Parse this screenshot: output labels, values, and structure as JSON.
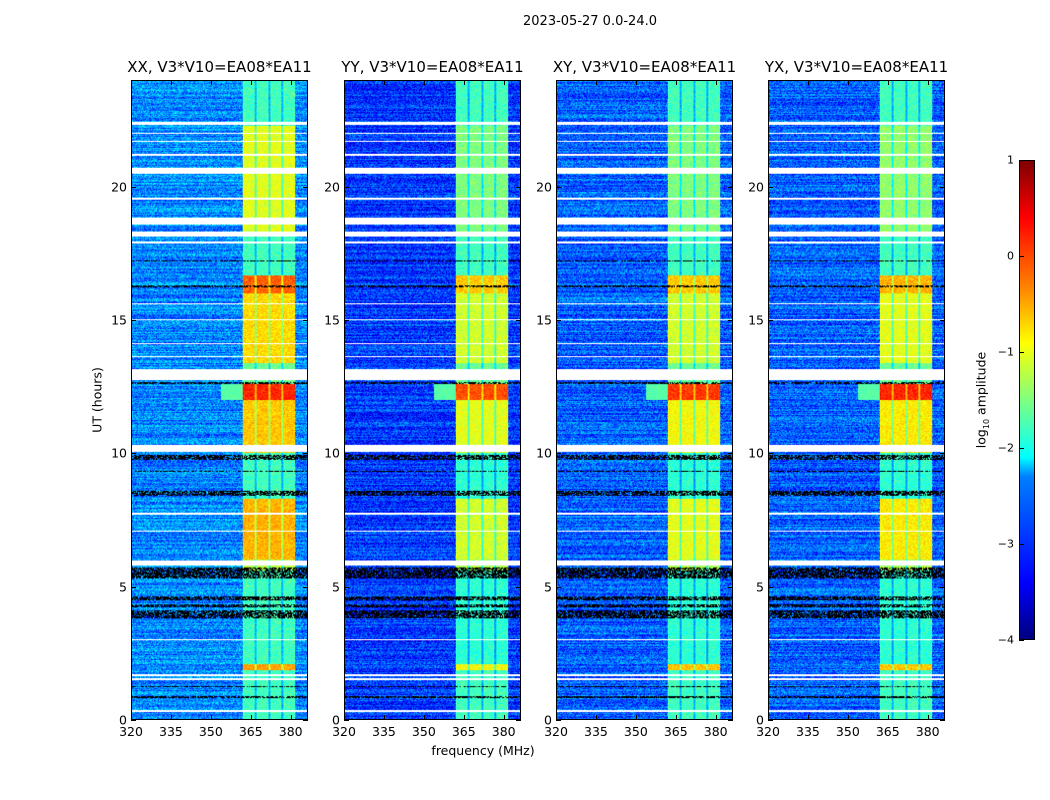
{
  "chart_data": {
    "type": "heatmap",
    "title": "2023-05-27 0.0-24.0",
    "xlabel": "frequency (MHz)",
    "ylabel": "UT (hours)",
    "xlim": [
      320,
      386.5
    ],
    "ylim": [
      0,
      24
    ],
    "xticks": [
      320,
      335,
      350,
      365,
      380
    ],
    "yticks": [
      0,
      5,
      10,
      15,
      20
    ],
    "panels": [
      {
        "title": "XX, V3*V10=EA08*EA11",
        "background": -2.7
      },
      {
        "title": "YY, V3*V10=EA08*EA11",
        "background": -3.1
      },
      {
        "title": "XY, V3*V10=EA08*EA11",
        "background": -2.9
      },
      {
        "title": "YX, V3*V10=EA08*EA11",
        "background": -2.9
      }
    ],
    "bands_mhz": [
      [
        362,
        366.5
      ],
      [
        367.3,
        371.8
      ],
      [
        372.5,
        376.8
      ],
      [
        377.6,
        382
      ]
    ],
    "segments": [
      {
        "ut": [
          0,
          1.85
        ],
        "level": [
          -1.8,
          -1.8,
          -1.8,
          -1.8
        ]
      },
      {
        "ut": [
          1.85,
          2.05
        ],
        "level": [
          -0.4,
          -0.9,
          -0.6,
          -0.6
        ]
      },
      {
        "ut": [
          2.05,
          5.6
        ],
        "level": [
          -1.8,
          -1.9,
          -1.9,
          -1.9
        ]
      },
      {
        "ut": [
          5.6,
          6.0
        ],
        "level": [
          -1.2,
          -1.3,
          -1.3,
          -1.3
        ]
      },
      {
        "ut": [
          6.0,
          8.3
        ],
        "level": [
          -0.5,
          -1.1,
          -1.0,
          -0.8
        ]
      },
      {
        "ut": [
          8.3,
          10.0
        ],
        "level": [
          -1.8,
          -1.9,
          -1.9,
          -1.9
        ]
      },
      {
        "ut": [
          10.0,
          12.0
        ],
        "level": [
          -0.6,
          -1.0,
          -0.9,
          -0.8
        ]
      },
      {
        "ut": [
          12.0,
          12.6
        ],
        "level": [
          0.2,
          0.0,
          0.1,
          0.2
        ]
      },
      {
        "ut": [
          12.6,
          13.4
        ],
        "level": [
          -1.6,
          -1.6,
          -1.6,
          -1.6
        ]
      },
      {
        "ut": [
          13.4,
          16.0
        ],
        "level": [
          -0.7,
          -1.1,
          -1.1,
          -1.0
        ]
      },
      {
        "ut": [
          16.0,
          16.7
        ],
        "level": [
          -0.1,
          -0.6,
          -0.6,
          -0.5
        ]
      },
      {
        "ut": [
          16.7,
          18.3
        ],
        "level": [
          -1.8,
          -1.8,
          -1.8,
          -1.8
        ]
      },
      {
        "ut": [
          18.3,
          22.3
        ],
        "level": [
          -1.0,
          -1.5,
          -1.5,
          -1.4
        ]
      },
      {
        "ut": [
          22.3,
          24
        ],
        "level": [
          -1.8,
          -1.8,
          -1.8,
          -1.8
        ]
      }
    ],
    "blank_ut": [
      [
        0.25,
        0.32
      ],
      [
        1.45,
        1.52
      ],
      [
        1.62,
        1.68
      ],
      [
        2.95,
        3.0
      ],
      [
        5.78,
        5.95
      ],
      [
        7.05,
        7.1
      ],
      [
        7.7,
        7.75
      ],
      [
        10.05,
        10.3
      ],
      [
        12.75,
        13.15
      ],
      [
        13.6,
        13.65
      ],
      [
        14.1,
        14.15
      ],
      [
        15.0,
        15.05
      ],
      [
        15.6,
        15.65
      ],
      [
        17.9,
        17.95
      ],
      [
        18.15,
        18.35
      ],
      [
        18.6,
        18.85
      ],
      [
        19.55,
        19.6
      ],
      [
        20.5,
        20.75
      ],
      [
        21.2,
        21.25
      ],
      [
        21.7,
        21.75
      ],
      [
        22.0,
        22.05
      ],
      [
        22.35,
        22.45
      ]
    ],
    "flagged_ut": [
      [
        0.8,
        0.85
      ],
      [
        1.2,
        1.25
      ],
      [
        3.8,
        4.1
      ],
      [
        4.2,
        4.3
      ],
      [
        4.45,
        4.6
      ],
      [
        5.3,
        5.7
      ],
      [
        8.4,
        8.6
      ],
      [
        9.3,
        9.35
      ],
      [
        9.75,
        9.95
      ],
      [
        12.6,
        12.68
      ],
      [
        16.25,
        16.3
      ],
      [
        17.2,
        17.25
      ]
    ],
    "colorbar": {
      "label_prefix": "log",
      "label_sub": "10",
      "label_suffix": " amplitude",
      "ticks": [
        1,
        0,
        -1,
        -2,
        -3,
        -4
      ],
      "tick_labels": [
        "1",
        "0",
        "−1",
        "−2",
        "−3",
        "−4"
      ],
      "range": [
        -4,
        1
      ],
      "colormap": "jet"
    }
  }
}
